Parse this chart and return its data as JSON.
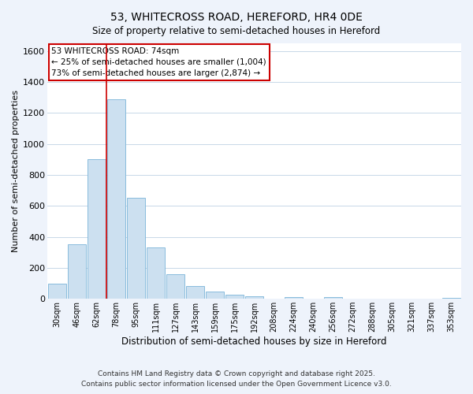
{
  "title": "53, WHITECROSS ROAD, HEREFORD, HR4 0DE",
  "subtitle": "Size of property relative to semi-detached houses in Hereford",
  "bar_labels": [
    "30sqm",
    "46sqm",
    "62sqm",
    "78sqm",
    "95sqm",
    "111sqm",
    "127sqm",
    "143sqm",
    "159sqm",
    "175sqm",
    "192sqm",
    "208sqm",
    "224sqm",
    "240sqm",
    "256sqm",
    "272sqm",
    "288sqm",
    "305sqm",
    "321sqm",
    "337sqm",
    "353sqm"
  ],
  "bar_values": [
    100,
    350,
    900,
    1290,
    650,
    330,
    160,
    80,
    48,
    25,
    18,
    0,
    10,
    0,
    12,
    0,
    0,
    0,
    0,
    0,
    5
  ],
  "bar_color": "#cce0f0",
  "bar_edge_color": "#7ab4d8",
  "vline_x_idx": 3,
  "vline_color": "#cc0000",
  "ylabel": "Number of semi-detached properties",
  "xlabel": "Distribution of semi-detached houses by size in Hereford",
  "ylim": [
    0,
    1650
  ],
  "yticks": [
    0,
    200,
    400,
    600,
    800,
    1000,
    1200,
    1400,
    1600
  ],
  "annotation_title": "53 WHITECROSS ROAD: 74sqm",
  "annotation_line1": "← 25% of semi-detached houses are smaller (1,004)",
  "annotation_line2": "73% of semi-detached houses are larger (2,874) →",
  "annotation_box_color": "#ffffff",
  "annotation_box_edge": "#cc0000",
  "footnote1": "Contains HM Land Registry data © Crown copyright and database right 2025.",
  "footnote2": "Contains public sector information licensed under the Open Government Licence v3.0.",
  "bg_color": "#eef3fb",
  "plot_bg_color": "#ffffff",
  "grid_color": "#c8d8e8"
}
